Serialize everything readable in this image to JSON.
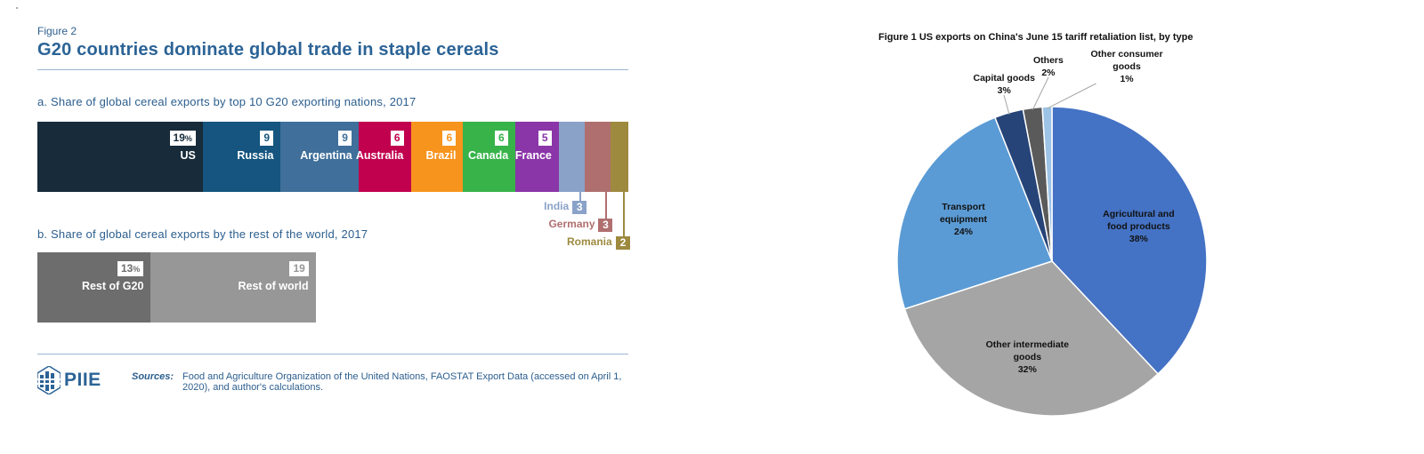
{
  "figure2": {
    "label": "Figure 2",
    "title": "G20 countries dominate global trade in staple cereals",
    "panel_a_title": "a. Share of global cereal exports by top 10 G20 exporting nations, 2017",
    "panel_b_title": "b. Share of global cereal exports by the rest of the world, 2017",
    "sources_label": "Sources:",
    "sources_text": "Food and Agriculture Organization of the United Nations, FAOSTAT Export Data (accessed on April 1, 2020), and author's calculations.",
    "logo_text": "PIIE"
  },
  "figure1": {
    "title": "Figure 1 US exports on China's June 15 tariff retaliation list, by type"
  },
  "chart_data": [
    {
      "type": "bar",
      "orientation": "horizontal-stacked",
      "categories": [
        "US",
        "Russia",
        "Argentina",
        "Australia",
        "Brazil",
        "Canada",
        "France",
        "India",
        "Germany",
        "Romania"
      ],
      "values": [
        19,
        9,
        9,
        6,
        6,
        6,
        5,
        3,
        3,
        2
      ],
      "value_labels": [
        "19",
        "9",
        "9",
        "6",
        "6",
        "6",
        "5",
        "3",
        "3",
        "2"
      ],
      "percent_suffix": "%",
      "colors": [
        "#172b3a",
        "#15557f",
        "#3f6f9a",
        "#c1004e",
        "#f7941d",
        "#37b34a",
        "#8a35a8",
        "#8aa2c8",
        "#b06f6f",
        "#9d8a3f"
      ]
    },
    {
      "type": "bar",
      "orientation": "horizontal-stacked",
      "categories": [
        "Rest of G20",
        "Rest of world"
      ],
      "values": [
        13,
        19
      ],
      "value_labels": [
        "13",
        "19"
      ],
      "percent_suffix": "%",
      "colors": [
        "#6d6d6d",
        "#979797"
      ]
    },
    {
      "type": "pie",
      "title": "Figure 1 US exports on China's June 15 tariff retaliation list, by type",
      "slices": [
        {
          "label": "Agricultural and food products",
          "label_lines": [
            "Agricultural and",
            "food products"
          ],
          "value": 38,
          "value_label": "38%",
          "color": "#4472c4"
        },
        {
          "label": "Other intermediate goods",
          "label_lines": [
            "Other intermediate",
            "goods"
          ],
          "value": 32,
          "value_label": "32%",
          "color": "#a5a5a5"
        },
        {
          "label": "Transport equipment",
          "label_lines": [
            "Transport",
            "equipment"
          ],
          "value": 24,
          "value_label": "24%",
          "color": "#5b9bd5"
        },
        {
          "label": "Capital goods",
          "label_lines": [
            "Capital goods"
          ],
          "value": 3,
          "value_label": "3%",
          "color": "#264478"
        },
        {
          "label": "Others",
          "label_lines": [
            "Others"
          ],
          "value": 2,
          "value_label": "2%",
          "color": "#5a5a5a"
        },
        {
          "label": "Other consumer goods",
          "label_lines": [
            "Other consumer",
            "goods"
          ],
          "value": 1,
          "value_label": "1%",
          "color": "#9dc3e6"
        }
      ]
    }
  ]
}
